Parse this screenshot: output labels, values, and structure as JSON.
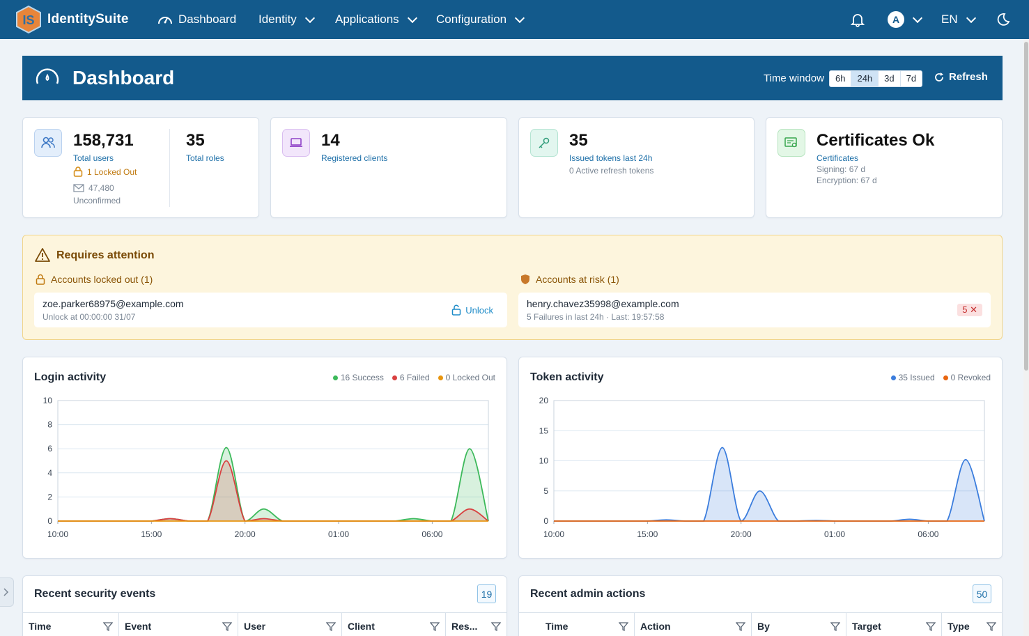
{
  "nav": {
    "brand": "IdentitySuite",
    "logo_text": "IS",
    "items": [
      {
        "label": "Dashboard",
        "icon": "gauge-icon"
      },
      {
        "label": "Identity"
      },
      {
        "label": "Applications"
      },
      {
        "label": "Configuration"
      }
    ],
    "avatar_initial": "A",
    "language": "EN"
  },
  "header": {
    "title": "Dashboard",
    "time_window_label": "Time window",
    "time_windows": [
      "6h",
      "24h",
      "3d",
      "7d"
    ],
    "active_window": "24h",
    "refresh_label": "Refresh"
  },
  "stats": {
    "users": {
      "total": "158,731",
      "total_label": "Total users",
      "locked": "1 Locked Out",
      "unconfirmed_count": "47,480",
      "unconfirmed_label": "Unconfirmed",
      "roles": "35",
      "roles_label": "Total roles"
    },
    "clients": {
      "value": "14",
      "label": "Registered clients"
    },
    "tokens": {
      "value": "35",
      "label": "Issued tokens last 24h",
      "sub": "0 Active refresh tokens"
    },
    "certificates": {
      "value": "Certificates Ok",
      "label": "Certificates",
      "signing": "Signing: 67 d",
      "encryption": "Encryption: 67 d"
    }
  },
  "attention": {
    "title": "Requires attention",
    "locked": {
      "heading": "Accounts locked out (1)",
      "email": "zoe.parker68975@example.com",
      "meta": "Unlock at 00:00:00 31/07",
      "action": "Unlock"
    },
    "risk": {
      "heading": "Accounts at risk (1)",
      "email": "henry.chavez35998@example.com",
      "meta": "5 Failures in last 24h · Last: 19:57:58",
      "badge": "5 ✕"
    }
  },
  "login_chart": {
    "title": "Login activity",
    "legend": [
      "16 Success",
      "6 Failed",
      "0 Locked Out"
    ]
  },
  "token_chart": {
    "title": "Token activity",
    "legend": [
      "35 Issued",
      "0 Revoked"
    ]
  },
  "chart_data": [
    {
      "type": "area",
      "title": "Login activity",
      "x_ticks": [
        "10:00",
        "15:00",
        "20:00",
        "01:00",
        "06:00"
      ],
      "ylim": [
        0,
        10
      ],
      "y_ticks": [
        0,
        2,
        4,
        6,
        8,
        10
      ],
      "grid": true,
      "legend_position": "top-right",
      "x_hours": [
        0,
        1,
        2,
        3,
        4,
        5,
        6,
        7,
        8,
        9,
        10,
        11,
        12,
        13,
        14,
        15,
        16,
        17,
        18,
        19,
        20,
        21,
        22,
        23
      ],
      "series": [
        {
          "name": "Success",
          "color": "#3cb95a",
          "values": [
            0,
            0,
            0,
            0,
            0,
            0,
            0.2,
            0,
            0,
            6.1,
            0,
            1,
            0,
            0,
            0,
            0,
            0,
            0,
            0,
            0.2,
            0,
            0,
            6.0,
            0
          ]
        },
        {
          "name": "Failed",
          "color": "#d94040",
          "values": [
            0,
            0,
            0,
            0,
            0,
            0,
            0.2,
            0,
            0,
            5,
            0,
            0.2,
            0,
            0,
            0,
            0,
            0,
            0,
            0,
            0,
            0,
            0,
            1,
            0
          ]
        },
        {
          "name": "Locked Out",
          "color": "#e8950f",
          "values": [
            0,
            0,
            0,
            0,
            0,
            0,
            0,
            0,
            0,
            0,
            0,
            0,
            0,
            0,
            0,
            0,
            0,
            0,
            0,
            0,
            0,
            0,
            0,
            0
          ]
        }
      ]
    },
    {
      "type": "area",
      "title": "Token activity",
      "x_ticks": [
        "10:00",
        "15:00",
        "20:00",
        "01:00",
        "06:00"
      ],
      "ylim": [
        0,
        20
      ],
      "y_ticks": [
        0,
        5,
        10,
        15,
        20
      ],
      "grid": true,
      "legend_position": "top-right",
      "x_hours": [
        0,
        1,
        2,
        3,
        4,
        5,
        6,
        7,
        8,
        9,
        10,
        11,
        12,
        13,
        14,
        15,
        16,
        17,
        18,
        19,
        20,
        21,
        22,
        23
      ],
      "series": [
        {
          "name": "Issued",
          "color": "#3b7ddd",
          "values": [
            0,
            0,
            0,
            0,
            0,
            0,
            0.2,
            0,
            0,
            12.2,
            0,
            5,
            0,
            0,
            0.1,
            0,
            0,
            0,
            0,
            0.3,
            0,
            0,
            10.2,
            0
          ]
        },
        {
          "name": "Revoked",
          "color": "#e8650f",
          "values": [
            0,
            0,
            0,
            0,
            0,
            0,
            0,
            0,
            0,
            0,
            0,
            0,
            0,
            0,
            0,
            0,
            0,
            0,
            0,
            0,
            0,
            0,
            0,
            0
          ]
        }
      ]
    }
  ],
  "security_events": {
    "title": "Recent security events",
    "count": "19",
    "columns": [
      "Time",
      "Event",
      "User",
      "Client",
      "Res..."
    ]
  },
  "admin_actions": {
    "title": "Recent admin actions",
    "count": "50",
    "columns": [
      "Time",
      "Action",
      "By",
      "Target",
      "Type"
    ]
  }
}
